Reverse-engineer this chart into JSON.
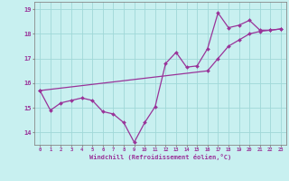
{
  "xlabel": "Windchill (Refroidissement éolien,°C)",
  "background_color": "#c8f0f0",
  "grid_color": "#a0d8d8",
  "line_color": "#993399",
  "x_hours": [
    0,
    1,
    2,
    3,
    4,
    5,
    6,
    7,
    8,
    9,
    10,
    11,
    12,
    13,
    14,
    15,
    16,
    17,
    18,
    19,
    20,
    21,
    22,
    23
  ],
  "line1_y": [
    15.7,
    14.9,
    15.2,
    15.3,
    15.4,
    15.3,
    14.85,
    14.75,
    14.4,
    13.6,
    14.4,
    15.05,
    16.8,
    17.25,
    16.65,
    16.7,
    17.4,
    18.85,
    18.25,
    18.35,
    18.55,
    18.15,
    18.15,
    18.2
  ],
  "line2_y": [
    15.7,
    null,
    null,
    null,
    null,
    null,
    null,
    null,
    null,
    null,
    null,
    null,
    null,
    null,
    null,
    null,
    16.5,
    17.0,
    17.5,
    17.75,
    18.0,
    18.1,
    18.15,
    18.2
  ],
  "ylim": [
    13.5,
    19.3
  ],
  "yticks": [
    14,
    15,
    16,
    17,
    18,
    19
  ],
  "marker": "D",
  "marker_size": 2,
  "line_width": 0.9
}
